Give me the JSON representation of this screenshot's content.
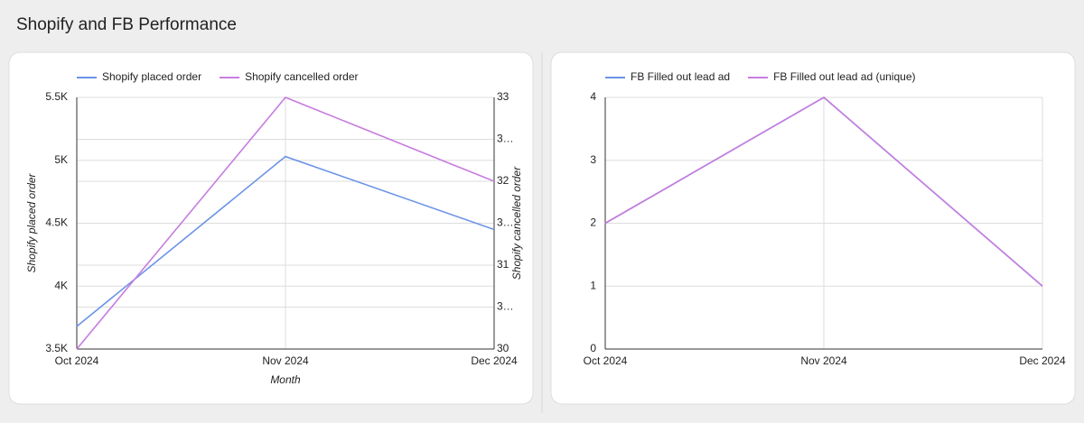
{
  "page_title": "Shopify and FB Performance",
  "chart_data": [
    {
      "type": "line",
      "categories": [
        "Oct 2024",
        "Nov 2024",
        "Dec 2024"
      ],
      "x_label": "Month",
      "y_label": "Shopify placed order",
      "y2_label": "Shopify cancelled order",
      "ylim": [
        3500,
        5500
      ],
      "yticks": [
        {
          "value": 3500,
          "label": "3.5K"
        },
        {
          "value": 4000,
          "label": "4K"
        },
        {
          "value": 4500,
          "label": "4.5K"
        },
        {
          "value": 5000,
          "label": "5K"
        },
        {
          "value": 5500,
          "label": "5.5K"
        }
      ],
      "y2lim": [
        30,
        33
      ],
      "y2ticks": [
        30,
        {
          "value": 30.5,
          "label": "3…"
        },
        31,
        {
          "value": 31.5,
          "label": "3…"
        },
        32,
        {
          "value": 32.5,
          "label": "3…"
        },
        33
      ],
      "grid": true,
      "legend": "top-left",
      "series": [
        {
          "name": "Shopify placed order",
          "color": "#6b93e6",
          "values": [
            3680,
            5030,
            4450
          ]
        },
        {
          "name": "Shopify cancelled order",
          "color": "#c77ddf",
          "axis": "y2",
          "values": [
            30,
            33,
            32
          ]
        }
      ]
    },
    {
      "type": "line",
      "categories": [
        "Oct 2024",
        "Nov 2024",
        "Dec 2024"
      ],
      "ylim": [
        0,
        4
      ],
      "yticks": [
        0,
        1,
        2,
        3,
        4
      ],
      "grid": true,
      "legend": "top-left",
      "series": [
        {
          "name": "FB Filled out lead ad",
          "color": "#6b93e6",
          "values": [
            2,
            4,
            1
          ]
        },
        {
          "name": "FB Filled out lead ad (unique)",
          "color": "#c77ddf",
          "values": [
            2,
            4,
            1
          ]
        }
      ]
    }
  ]
}
